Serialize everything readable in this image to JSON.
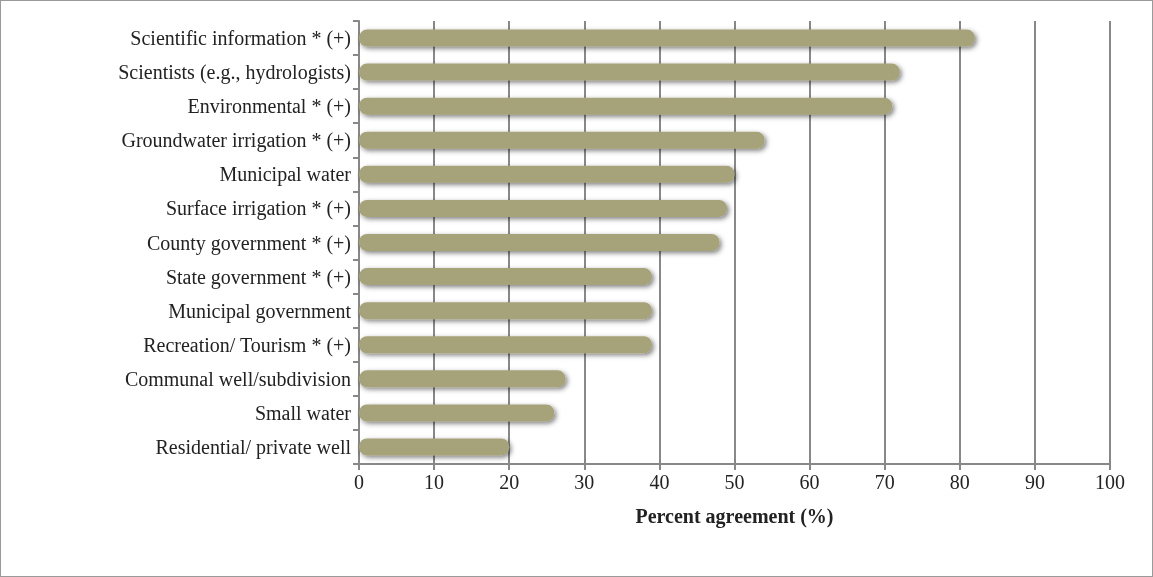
{
  "chart_data": {
    "type": "bar",
    "orientation": "horizontal",
    "xlabel": "Percent agreement (%)",
    "categories": [
      "Scientific information * (+)",
      "Scientists (e.g., hydrologists)",
      "Environmental * (+)",
      "Groundwater irrigation * (+)",
      "Municipal water",
      "Surface irrigation * (+)",
      "County government * (+)",
      "State government * (+)",
      "Municipal government",
      "Recreation/ Tourism * (+)",
      "Communal well/subdivision",
      "Small water",
      "Residential/ private well"
    ],
    "values": [
      82,
      72,
      71,
      54,
      50,
      49,
      48,
      39,
      39,
      39,
      27.5,
      26,
      20
    ],
    "color": "#a6a27a",
    "xlim": [
      0,
      100
    ],
    "xticks": [
      0,
      10,
      20,
      30,
      40,
      50,
      60,
      70,
      80,
      90,
      100
    ],
    "grid": "x"
  }
}
